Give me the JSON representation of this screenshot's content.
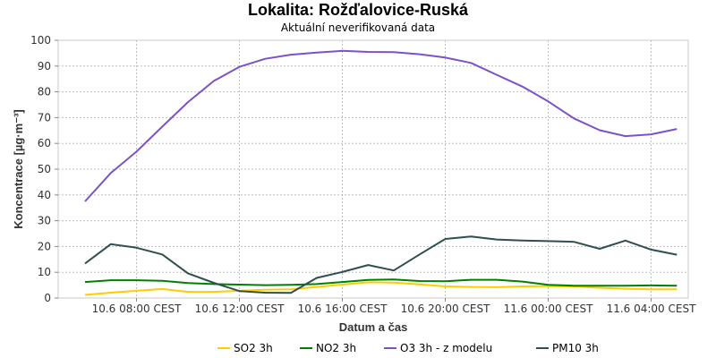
{
  "title": "Lokalita: Rožďalovice-Ruská",
  "subtitle": "Aktuální neverifikovaná data",
  "chart_data": {
    "type": "line",
    "title": "Lokalita: Rožďalovice-Ruská",
    "subtitle": "Aktuální neverifikovaná data",
    "xlabel": "Datum a čas",
    "ylabel": "Koncentrace [µg·m⁻³]",
    "ylim": [
      0,
      100
    ],
    "yticks": [
      0,
      10,
      20,
      30,
      40,
      50,
      60,
      70,
      80,
      90,
      100
    ],
    "xtick_labels": [
      "10.6 08:00 CEST",
      "10.6 12:00 CEST",
      "10.6 16:00 CEST",
      "10.6 20:00 CEST",
      "11.6 00:00 CEST",
      "11.6 04:00 CEST"
    ],
    "x": [
      "10.6 06:00",
      "10.6 07:00",
      "10.6 08:00",
      "10.6 09:00",
      "10.6 10:00",
      "10.6 11:00",
      "10.6 12:00",
      "10.6 13:00",
      "10.6 14:00",
      "10.6 15:00",
      "10.6 16:00",
      "10.6 17:00",
      "10.6 18:00",
      "10.6 19:00",
      "10.6 20:00",
      "10.6 21:00",
      "10.6 22:00",
      "10.6 23:00",
      "11.6 00:00",
      "11.6 01:00",
      "11.6 02:00",
      "11.6 03:00",
      "11.6 04:00",
      "11.6 05:00"
    ],
    "grid": true,
    "legend_position": "bottom",
    "series": [
      {
        "name": "SO2 3h",
        "color": "#ffcc00",
        "values": [
          1.2,
          2.1,
          2.8,
          3.5,
          2.4,
          2.4,
          2.8,
          3.2,
          3.4,
          4.3,
          5.2,
          6.1,
          6.0,
          5.3,
          4.5,
          4.3,
          4.2,
          4.5,
          4.6,
          4.5,
          4.0,
          3.6,
          3.4,
          3.4
        ]
      },
      {
        "name": "NO2 3h",
        "color": "#008000",
        "values": [
          6.2,
          6.9,
          6.9,
          6.7,
          5.8,
          5.4,
          5.2,
          5.0,
          5.1,
          5.4,
          6.2,
          7.0,
          7.2,
          6.6,
          6.5,
          7.1,
          7.1,
          6.4,
          5.1,
          4.8,
          4.8,
          4.8,
          4.9,
          4.8
        ]
      },
      {
        "name": "O3 3h - z modelu",
        "color": "#7b52c7",
        "values": [
          37.5,
          48.5,
          56.8,
          66.5,
          76.0,
          84.2,
          89.7,
          92.8,
          94.4,
          95.2,
          95.9,
          95.5,
          95.4,
          94.6,
          93.3,
          91.2,
          86.6,
          82.0,
          76.3,
          69.7,
          65.1,
          62.8,
          63.5,
          65.6
        ]
      },
      {
        "name": "PM10 3h",
        "color": "#2f4f4f",
        "values": [
          13.4,
          20.9,
          19.5,
          16.9,
          9.6,
          5.9,
          2.7,
          2.1,
          2.0,
          7.8,
          10.1,
          12.8,
          10.7,
          16.9,
          22.9,
          23.9,
          22.7,
          22.3,
          22.1,
          21.8,
          19.1,
          22.3,
          18.8,
          16.8
        ]
      }
    ]
  }
}
